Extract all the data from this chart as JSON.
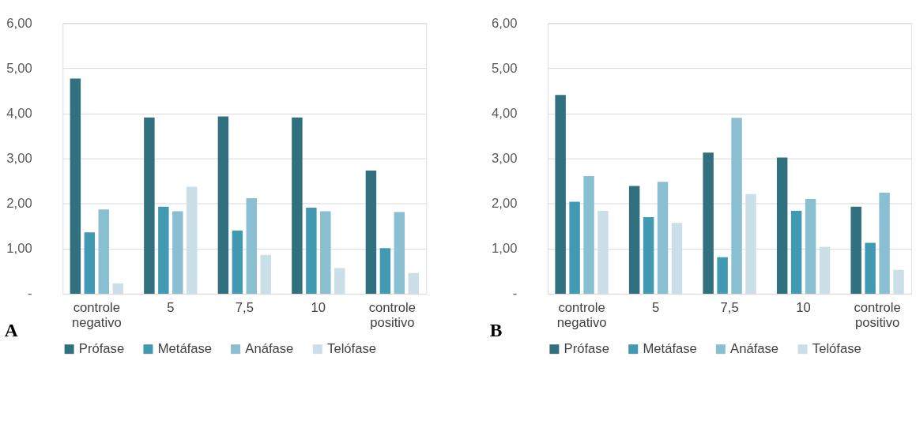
{
  "chart_data": [
    {
      "type": "bar",
      "annotations": [
        "A"
      ],
      "categories": [
        "controle negativo",
        "5",
        "7,5",
        "10",
        "controle positivo"
      ],
      "series": [
        {
          "name": "Prófase",
          "color": "#31717f",
          "values": [
            4.77,
            3.91,
            3.93,
            3.91,
            2.73
          ]
        },
        {
          "name": "Metáfase",
          "color": "#4299b2",
          "values": [
            1.36,
            1.93,
            1.4,
            1.91,
            1.01
          ]
        },
        {
          "name": "Anáfase",
          "color": "#89bfd1",
          "values": [
            1.87,
            1.83,
            2.12,
            1.83,
            1.81
          ]
        },
        {
          "name": "Telófase",
          "color": "#cbdfe8",
          "values": [
            0.23,
            2.37,
            0.86,
            0.57,
            0.46
          ]
        }
      ],
      "ylim": [
        0,
        6
      ],
      "yticks": [
        {
          "value": 0,
          "label": "-"
        },
        {
          "value": 1,
          "label": "1,00"
        },
        {
          "value": 2,
          "label": "2,00"
        },
        {
          "value": 3,
          "label": "3,00"
        },
        {
          "value": 4,
          "label": "4,00"
        },
        {
          "value": 5,
          "label": "5,00"
        },
        {
          "value": 6,
          "label": "6,00"
        }
      ],
      "grid": "y",
      "legend": "bottom"
    },
    {
      "type": "bar",
      "annotations": [
        "B"
      ],
      "categories": [
        "controle negativo",
        "5",
        "7,5",
        "10",
        "controle positivo"
      ],
      "series": [
        {
          "name": "Prófase",
          "color": "#31717f",
          "values": [
            4.41,
            2.39,
            3.13,
            3.02,
            1.93
          ]
        },
        {
          "name": "Metáfase",
          "color": "#4299b2",
          "values": [
            2.04,
            1.7,
            0.81,
            1.84,
            1.13
          ]
        },
        {
          "name": "Anáfase",
          "color": "#89bfd1",
          "values": [
            2.61,
            2.48,
            3.9,
            2.1,
            2.24
          ]
        },
        {
          "name": "Telófase",
          "color": "#cbdfe8",
          "values": [
            1.84,
            1.57,
            2.21,
            1.04,
            0.53
          ]
        }
      ],
      "ylim": [
        0,
        6
      ],
      "yticks": [
        {
          "value": 0,
          "label": "-"
        },
        {
          "value": 1,
          "label": "1,00"
        },
        {
          "value": 2,
          "label": "2,00"
        },
        {
          "value": 3,
          "label": "3,00"
        },
        {
          "value": 4,
          "label": "4,00"
        },
        {
          "value": 5,
          "label": "5,00"
        },
        {
          "value": 6,
          "label": "6,00"
        }
      ],
      "grid": "y",
      "legend": "bottom"
    }
  ]
}
